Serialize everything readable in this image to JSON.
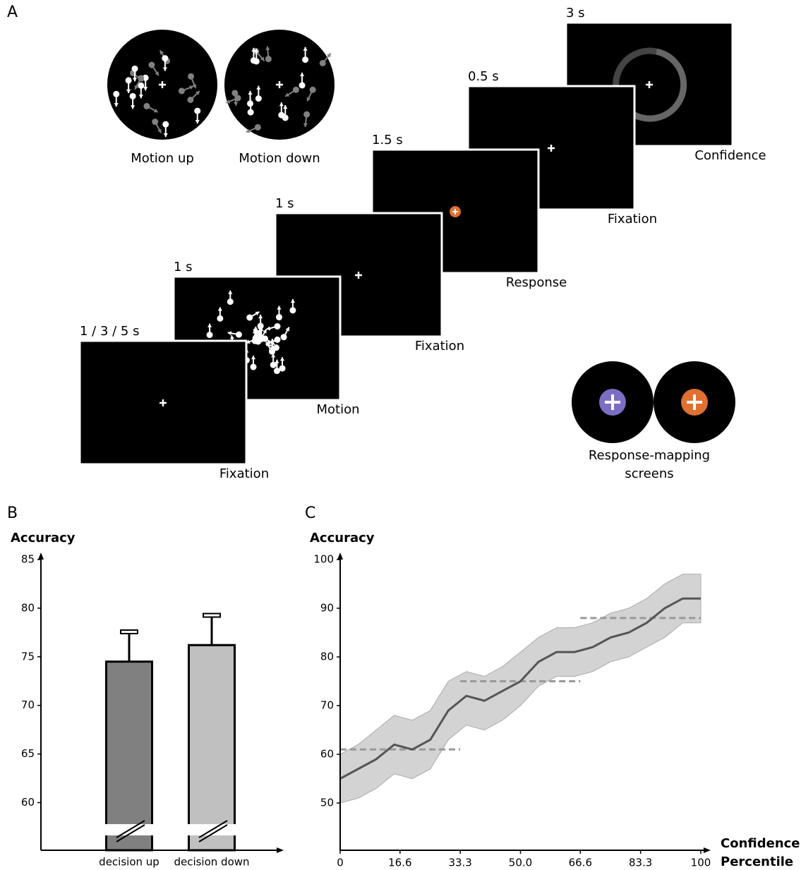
{
  "diagram": {
    "panel": "A",
    "conditions": [
      "Motion up",
      "Motion down"
    ],
    "screens": [
      {
        "duration": "1 / 3 / 5 s",
        "label": "Fixation"
      },
      {
        "duration": "1 s",
        "label": "Motion"
      },
      {
        "duration": "1 s",
        "label": "Fixation"
      },
      {
        "duration": "1.5 s",
        "label": "Response"
      },
      {
        "duration": "0.5 s",
        "label": "Fixation"
      },
      {
        "duration": "3 s",
        "label": "Confidence"
      }
    ],
    "response_mapping": [
      "Response-mapping",
      "screens"
    ]
  },
  "chart_data": [
    {
      "type": "bar",
      "panel": "B",
      "y_label": "Accuracy",
      "categories": [
        "decision up",
        "decision down"
      ],
      "values": [
        74.5,
        76.2
      ],
      "errors": [
        3.1,
        3.1
      ],
      "colors": [
        "#808080",
        "#c0c0c0"
      ],
      "ylim": [
        55.1,
        85
      ],
      "yticks": [
        60,
        65,
        70,
        75,
        80,
        85
      ],
      "axis_break": true
    },
    {
      "type": "line",
      "panel": "C",
      "y_label": "Accuracy",
      "x_label": [
        "Confidence",
        "Percentile"
      ],
      "x": [
        0,
        5,
        10,
        15,
        20,
        25,
        30,
        35,
        40,
        45,
        50,
        55,
        60,
        65,
        70,
        75,
        80,
        85,
        90,
        95,
        100
      ],
      "series": [
        {
          "color": "#555555",
          "band_color": "#d3d3d3",
          "values": [
            55,
            57,
            59,
            62,
            61,
            63,
            69,
            72,
            71,
            73,
            75,
            79,
            81,
            81,
            82,
            84,
            85,
            87,
            90,
            92,
            92
          ],
          "lower": [
            50,
            51,
            53,
            56,
            55,
            57,
            63,
            66,
            65,
            67,
            70,
            74,
            76,
            76,
            77,
            79,
            80,
            82,
            84,
            87,
            87
          ],
          "upper": [
            60,
            62,
            65,
            68,
            67,
            69,
            75,
            77,
            76,
            78,
            81,
            84,
            86,
            86,
            87,
            89,
            90,
            92,
            95,
            97,
            97
          ]
        }
      ],
      "reference_lines": [
        {
          "x": [
            0,
            33.3
          ],
          "y": 61
        },
        {
          "x": [
            33.3,
            66.6
          ],
          "y": 75
        },
        {
          "x": [
            66.6,
            100
          ],
          "y": 88
        }
      ],
      "reference_color": "#999999",
      "xlim": [
        0,
        100
      ],
      "xticks": [
        0,
        16.6,
        33.3,
        {
          "value": 50,
          "label": "50.0"
        },
        66.6,
        83.3,
        100
      ],
      "ylim": [
        40.3,
        100
      ],
      "yticks": [
        50,
        60,
        70,
        80,
        90,
        100
      ]
    }
  ]
}
